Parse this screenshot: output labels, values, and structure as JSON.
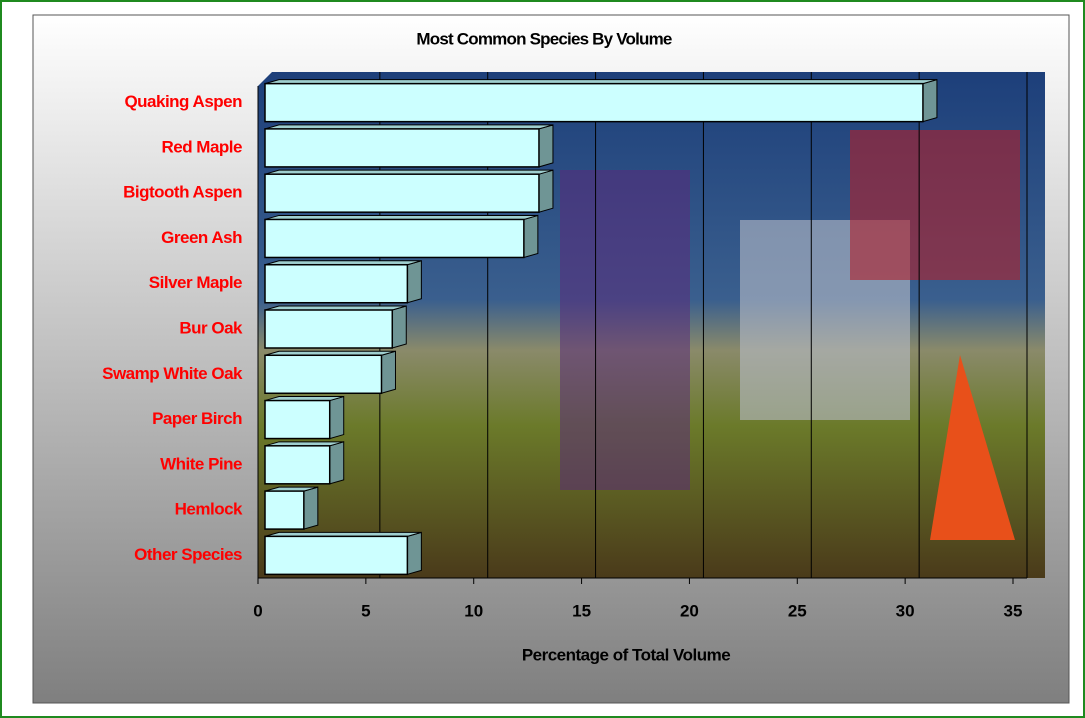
{
  "chart_data": {
    "type": "bar3d_horizontal",
    "title": "Most Common Species By Volume",
    "x_label": "Percentage of Total Volume",
    "categories": [
      "Quaking Aspen",
      "Red Maple",
      "Bigtooth Aspen",
      "Green Ash",
      "Silver Maple",
      "Bur Oak",
      "Swamp White Oak",
      "Paper Birch",
      "White Pine",
      "Hemlock",
      "Other Species"
    ],
    "values": [
      30.5,
      12.7,
      12.7,
      12.0,
      6.6,
      5.9,
      5.4,
      3.0,
      3.0,
      1.8,
      6.6
    ],
    "color": "#ccffff",
    "side_color": "#6f9595",
    "label_color": "#ff0000",
    "xlim": [
      0,
      35
    ],
    "xticks": [
      0,
      5,
      10,
      15,
      20,
      25,
      30,
      35
    ],
    "grid": true
  }
}
